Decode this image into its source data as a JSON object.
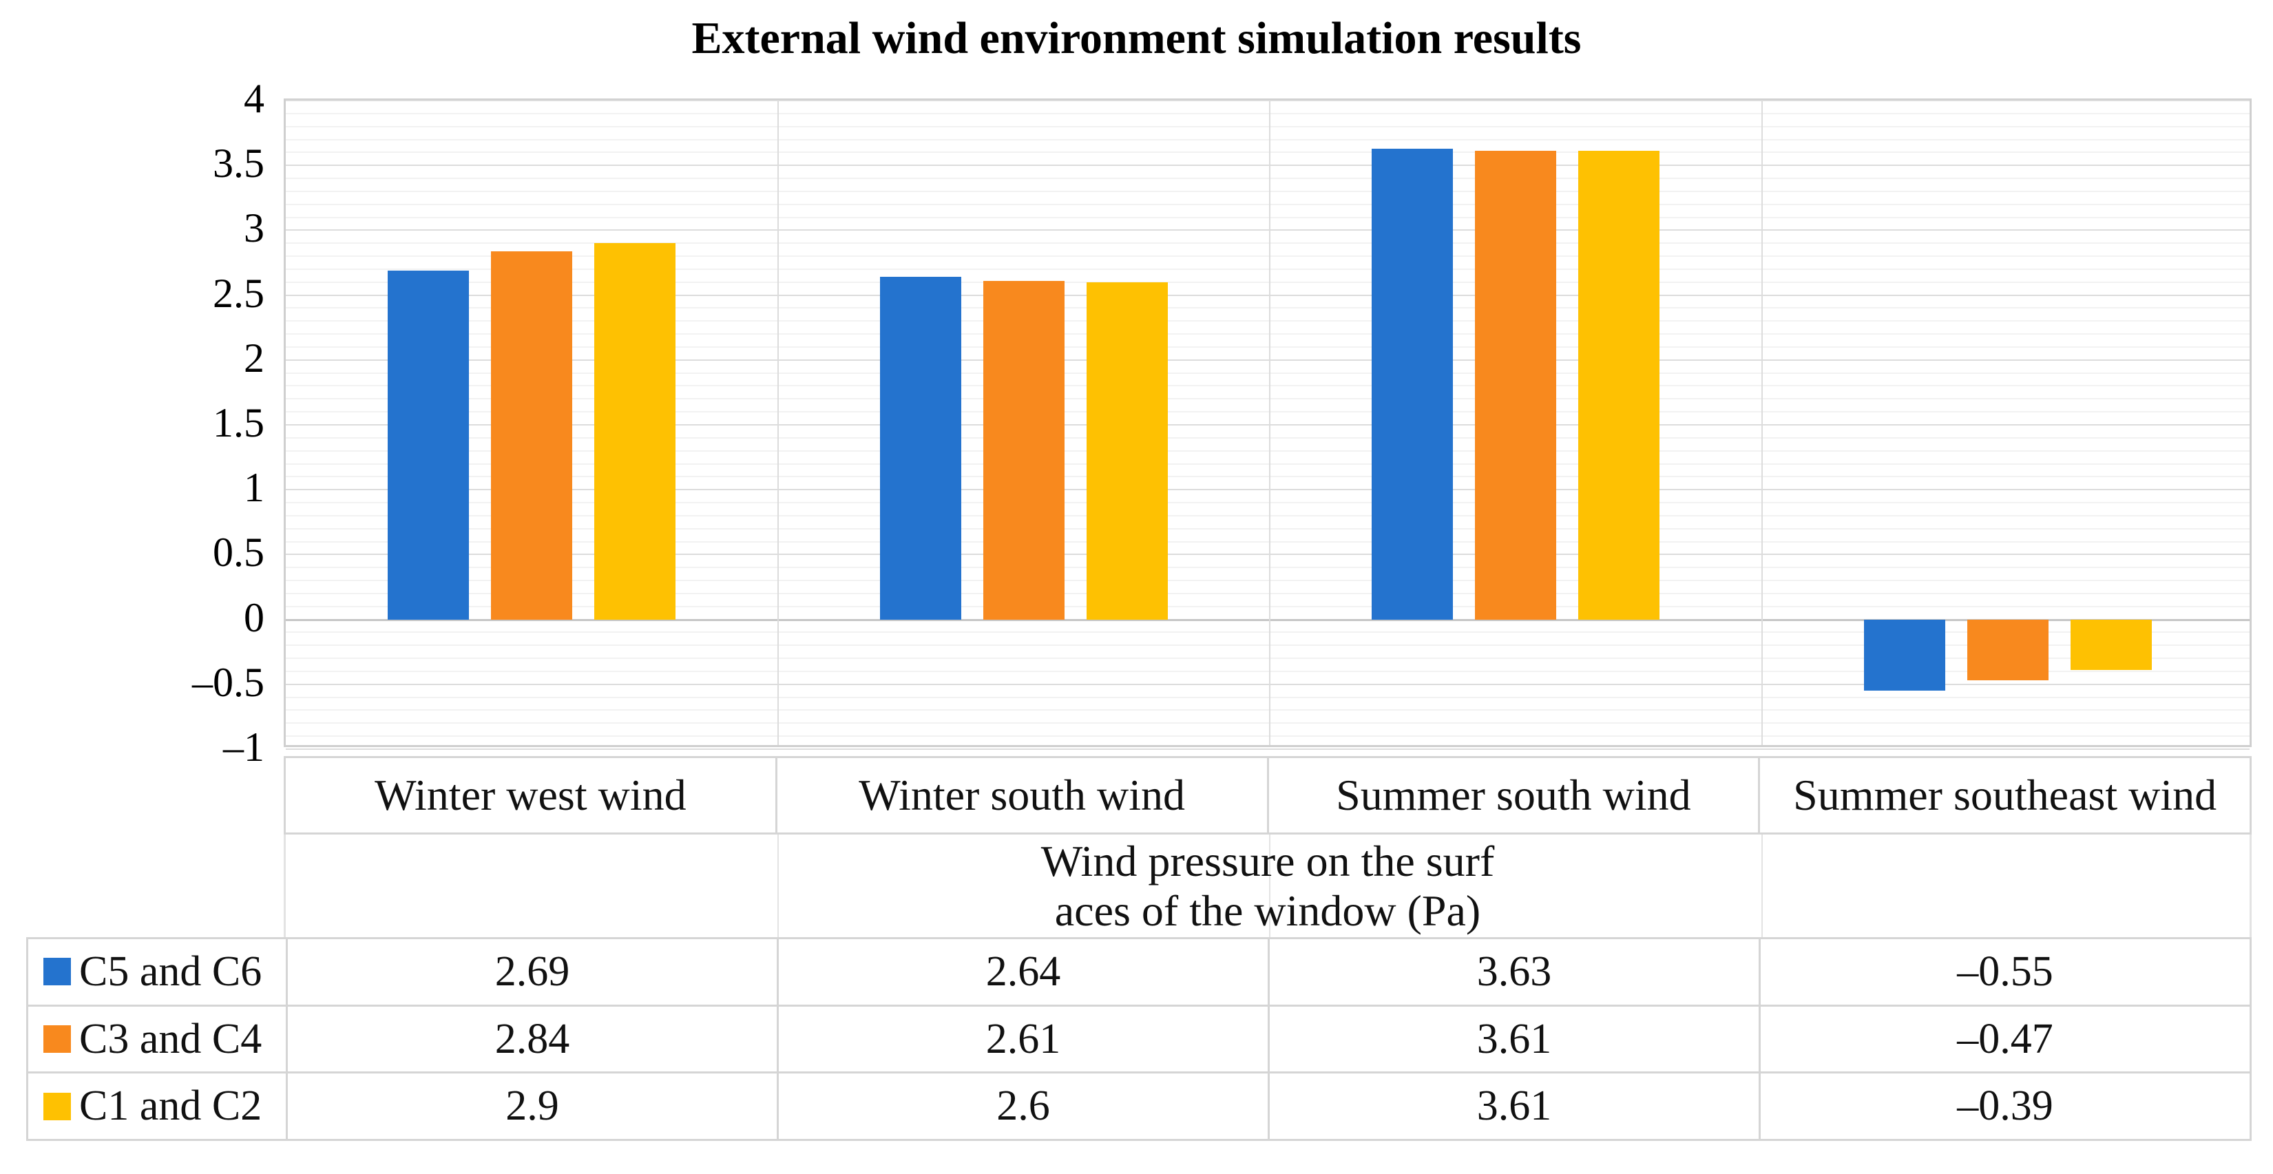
{
  "title": "External wind environment simulation results",
  "colors": {
    "blue": "#2473CE",
    "orange": "#F8891E",
    "yellow": "#FEC102",
    "grid_minor": "#f2f2f2",
    "grid_major": "#dcdcdc",
    "zero_line": "#c6c6c6",
    "table_border": "#d5d5d5"
  },
  "chart_data": {
    "type": "bar",
    "title": "External wind environment simulation results",
    "categories": [
      "Winter west wind",
      "Winter south wind",
      "Summer south wind",
      "Summer southeast wind"
    ],
    "series": [
      {
        "name": "C5 and C6",
        "color_key": "blue",
        "values": [
          2.69,
          2.64,
          3.63,
          -0.55
        ]
      },
      {
        "name": "C3 and C4",
        "color_key": "orange",
        "values": [
          2.84,
          2.61,
          3.61,
          -0.47
        ]
      },
      {
        "name": "C1 and C2",
        "color_key": "yellow",
        "values": [
          2.9,
          2.6,
          3.61,
          -0.39
        ]
      }
    ],
    "xlabel": [
      "Wind pressure on the surf",
      "aces of the window (Pa)"
    ],
    "ylabel": "",
    "ylim": [
      -1,
      4
    ],
    "y_major_step": 0.5,
    "y_minor_step": 0.1,
    "y_tick_labels": [
      "4",
      "3.5",
      "3",
      "2.5",
      "2",
      "1.5",
      "1",
      "0.5",
      "0",
      "–0.5",
      "–1"
    ],
    "grid": true,
    "legend_position": "data-table-left"
  },
  "data_table": {
    "rows": [
      {
        "label": "C5 and C6",
        "color_key": "blue",
        "values": [
          "2.69",
          "2.64",
          "3.63",
          "–0.55"
        ]
      },
      {
        "label": "C3 and C4",
        "color_key": "orange",
        "values": [
          "2.84",
          "2.61",
          "3.61",
          "–0.47"
        ]
      },
      {
        "label": "C1 and C2",
        "color_key": "yellow",
        "values": [
          "2.9",
          "2.6",
          "3.61",
          "–0.39"
        ]
      }
    ]
  }
}
